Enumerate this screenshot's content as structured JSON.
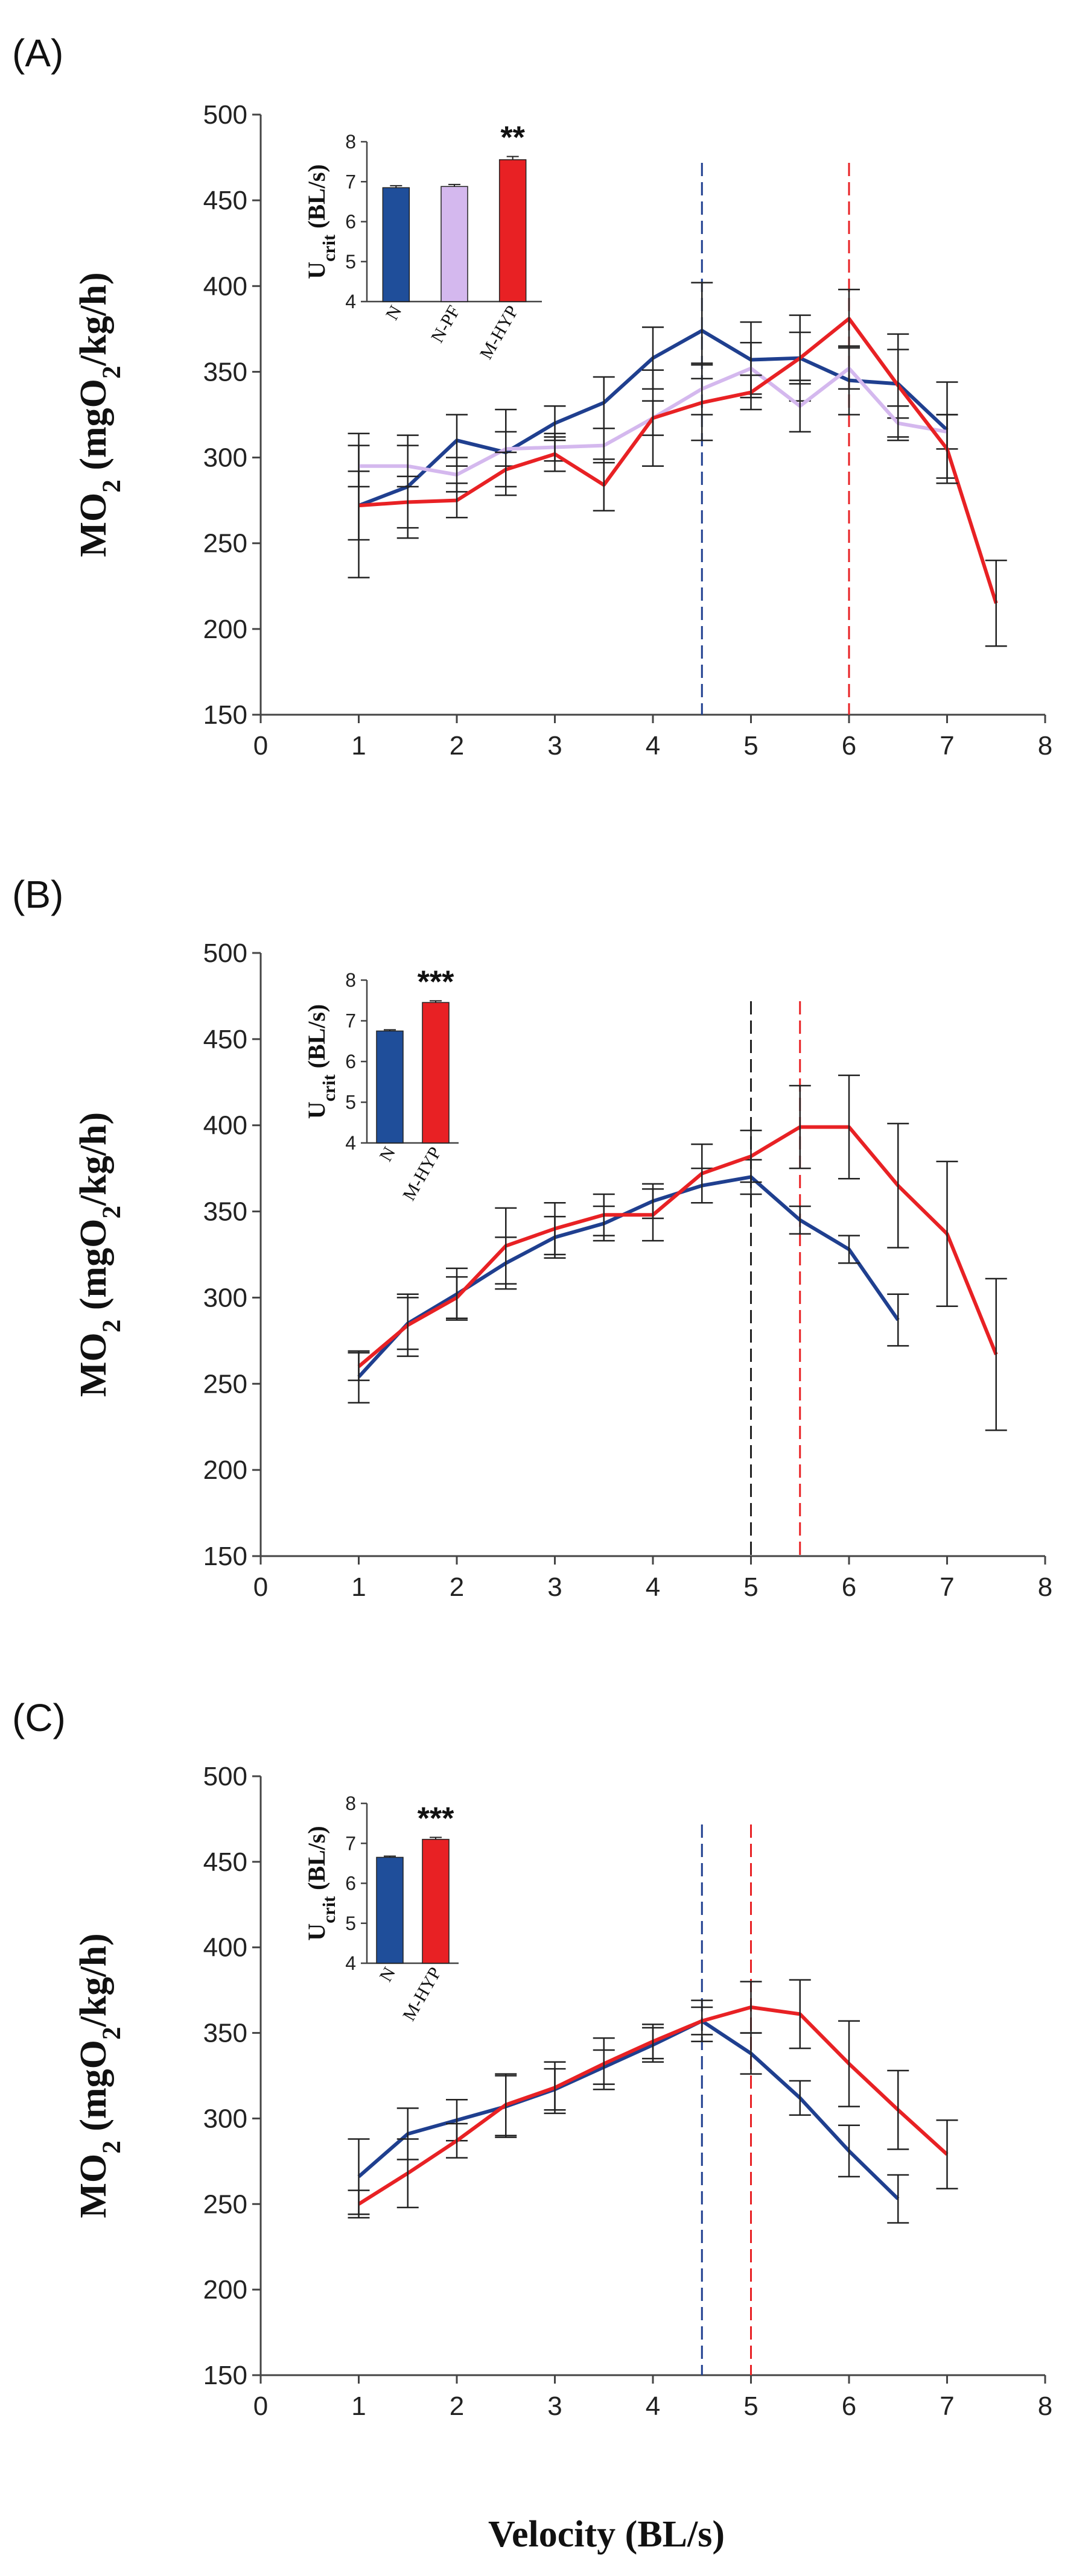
{
  "figure": {
    "xlabel": "Velocity (BL/s)",
    "ylabel": "MO2 (mgO2/kg/h)",
    "inset_ylabel": "Ucrit (BL/s)"
  },
  "colors": {
    "N": "#1f3f8f",
    "N_inset": "#1f4e9a",
    "N_PF": "#d4b8ee",
    "M_HYP": "#e82124",
    "vline_B_N": "#222222",
    "axis": "#444444"
  },
  "chart_data": [
    {
      "type": "line",
      "panel_label": "(A)",
      "xlabel": "",
      "ylabel": "MO2 (mgO2/kg/h)",
      "xlim": [
        0,
        8
      ],
      "ylim": [
        150,
        500
      ],
      "xticks": [
        0,
        1,
        2,
        3,
        4,
        5,
        6,
        7,
        8
      ],
      "yticks": [
        150,
        200,
        250,
        300,
        350,
        400,
        450,
        500
      ],
      "grid": false,
      "x": [
        1,
        1.5,
        2,
        2.5,
        3,
        3.5,
        4,
        4.5,
        5,
        5.5,
        6,
        6.5,
        7,
        7.5
      ],
      "series": [
        {
          "name": "N",
          "color_key": "N",
          "values": [
            272,
            283,
            310,
            303,
            320,
            332,
            358,
            374,
            357,
            358,
            345,
            343,
            316,
            null
          ],
          "errors": [
            42,
            30,
            15,
            25,
            10,
            15,
            18,
            28,
            22,
            25,
            20,
            20,
            28,
            null
          ]
        },
        {
          "name": "N-PF",
          "color_key": "N_PF",
          "values": [
            295,
            295,
            290,
            305,
            306,
            307,
            323,
            340,
            352,
            330,
            352,
            320,
            315,
            null
          ],
          "errors": [
            12,
            12,
            10,
            10,
            8,
            10,
            10,
            15,
            15,
            15,
            12,
            10,
            10,
            null
          ]
        },
        {
          "name": "M-HYP",
          "color_key": "M_HYP",
          "values": [
            272,
            274,
            275,
            293,
            302,
            284,
            323,
            332,
            338,
            358,
            381,
            342,
            305,
            215
          ],
          "errors": [
            20,
            15,
            10,
            10,
            10,
            15,
            28,
            22,
            10,
            15,
            17,
            30,
            20,
            25
          ]
        }
      ],
      "vlines": [
        {
          "x": 4.5,
          "color_key": "N"
        },
        {
          "x": 6,
          "color_key": "M_HYP"
        }
      ],
      "inset": {
        "type": "bar",
        "ylabel": "Ucrit (BL/s)",
        "ylim": [
          4,
          8
        ],
        "yticks": [
          4,
          5,
          6,
          7,
          8
        ],
        "categories": [
          "N",
          "N-PF",
          "M-HYP"
        ],
        "values": [
          6.85,
          6.88,
          7.55
        ],
        "errors": [
          0.05,
          0.05,
          0.08
        ],
        "color_keys": [
          "N_inset",
          "N_PF",
          "M_HYP"
        ],
        "significance": "**"
      }
    },
    {
      "type": "line",
      "panel_label": "(B)",
      "xlabel": "",
      "ylabel": "MO2 (mgO2/kg/h)",
      "xlim": [
        0,
        8
      ],
      "ylim": [
        150,
        500
      ],
      "xticks": [
        0,
        1,
        2,
        3,
        4,
        5,
        6,
        7,
        8
      ],
      "yticks": [
        150,
        200,
        250,
        300,
        350,
        400,
        450,
        500
      ],
      "grid": false,
      "x": [
        1,
        1.5,
        2,
        2.5,
        3,
        3.5,
        4,
        4.5,
        5,
        5.5,
        6,
        6.5,
        7,
        7.5
      ],
      "series": [
        {
          "name": "N",
          "color_key": "N",
          "values": [
            254,
            285,
            302,
            320,
            335,
            343,
            356,
            365,
            370,
            345,
            328,
            287,
            null,
            null
          ],
          "errors": [
            15,
            15,
            15,
            15,
            12,
            10,
            10,
            10,
            10,
            8,
            8,
            15,
            null,
            null
          ]
        },
        {
          "name": "M-HYP",
          "color_key": "M_HYP",
          "values": [
            260,
            284,
            300,
            330,
            340,
            348,
            348,
            372,
            382,
            399,
            399,
            365,
            337,
            267
          ],
          "errors": [
            8,
            18,
            12,
            22,
            15,
            12,
            15,
            17,
            15,
            24,
            30,
            36,
            42,
            44
          ]
        }
      ],
      "vlines": [
        {
          "x": 5,
          "color_key": "vline_B_N"
        },
        {
          "x": 5.5,
          "color_key": "M_HYP"
        }
      ],
      "inset": {
        "type": "bar",
        "ylabel": "Ucrit (BL/s)",
        "ylim": [
          4,
          8
        ],
        "yticks": [
          4,
          5,
          6,
          7,
          8
        ],
        "categories": [
          "N",
          "M-HYP"
        ],
        "values": [
          6.75,
          7.45
        ],
        "errors": [
          0.03,
          0.04
        ],
        "color_keys": [
          "N_inset",
          "M_HYP"
        ],
        "significance": "***"
      }
    },
    {
      "type": "line",
      "panel_label": "(C)",
      "xlabel": "Velocity (BL/s)",
      "ylabel": "MO2 (mgO2/kg/h)",
      "xlim": [
        0,
        8
      ],
      "ylim": [
        150,
        500
      ],
      "xticks": [
        0,
        1,
        2,
        3,
        4,
        5,
        6,
        7,
        8
      ],
      "yticks": [
        150,
        200,
        250,
        300,
        350,
        400,
        450,
        500
      ],
      "grid": false,
      "x": [
        1,
        1.5,
        2,
        2.5,
        3,
        3.5,
        4,
        4.5,
        5,
        5.5,
        6,
        6.5,
        7
      ],
      "series": [
        {
          "name": "N",
          "color_key": "N",
          "values": [
            266,
            291,
            299,
            307,
            317,
            330,
            343,
            357,
            338,
            312,
            281,
            253,
            null
          ],
          "errors": [
            22,
            15,
            12,
            18,
            12,
            10,
            10,
            12,
            12,
            10,
            15,
            14,
            null
          ]
        },
        {
          "name": "M-HYP",
          "color_key": "M_HYP",
          "values": [
            250,
            268,
            287,
            308,
            318,
            332,
            345,
            357,
            365,
            361,
            332,
            305,
            279
          ],
          "errors": [
            8,
            20,
            10,
            18,
            15,
            15,
            10,
            8,
            15,
            20,
            25,
            23,
            20
          ]
        }
      ],
      "vlines": [
        {
          "x": 4.5,
          "color_key": "N"
        },
        {
          "x": 5,
          "color_key": "M_HYP"
        }
      ],
      "inset": {
        "type": "bar",
        "ylabel": "Ucrit (BL/s)",
        "ylim": [
          4,
          8
        ],
        "yticks": [
          4,
          5,
          6,
          7,
          8
        ],
        "categories": [
          "N",
          "M-HYP"
        ],
        "values": [
          6.65,
          7.1
        ],
        "errors": [
          0.03,
          0.05
        ],
        "color_keys": [
          "N_inset",
          "M_HYP"
        ],
        "significance": "***"
      }
    }
  ]
}
